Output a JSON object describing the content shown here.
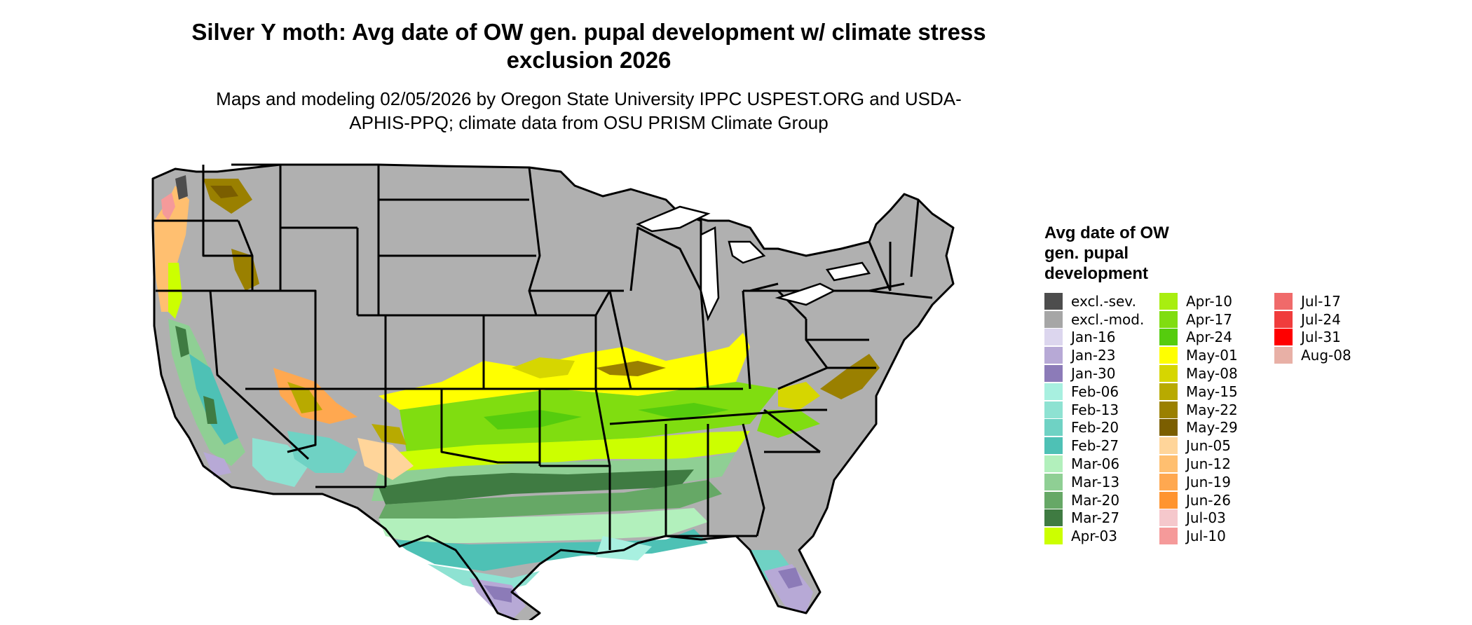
{
  "title": "Silver Y moth: Avg date of OW gen. pupal development w/ climate stress exclusion 2026",
  "subtitle": "Maps and modeling 02/05/2026 by Oregon State University IPPC USPEST.ORG and USDA-APHIS-PPQ; climate data from OSU PRISM Climate Group",
  "legend": {
    "title": "Avg date of OW gen. pupal development",
    "items": [
      {
        "label": "excl.-sev.",
        "color": "#4d4d4d"
      },
      {
        "label": "excl.-mod.",
        "color": "#a6a6a6"
      },
      {
        "label": "Jan-16",
        "color": "#dcd6ee"
      },
      {
        "label": "Jan-23",
        "color": "#b7a9d6"
      },
      {
        "label": "Jan-30",
        "color": "#8c7bb8"
      },
      {
        "label": "Feb-06",
        "color": "#a8f0e0"
      },
      {
        "label": "Feb-13",
        "color": "#8ee2d2"
      },
      {
        "label": "Feb-20",
        "color": "#6fd2c4"
      },
      {
        "label": "Feb-27",
        "color": "#4ec1b5"
      },
      {
        "label": "Mar-06",
        "color": "#b2f0bc"
      },
      {
        "label": "Mar-13",
        "color": "#8fcf94"
      },
      {
        "label": "Mar-20",
        "color": "#66a866"
      },
      {
        "label": "Mar-27",
        "color": "#3f7b42"
      },
      {
        "label": "Apr-03",
        "color": "#ccff00"
      },
      {
        "label": "Apr-10",
        "color": "#a8ee10"
      },
      {
        "label": "Apr-17",
        "color": "#80dd10"
      },
      {
        "label": "Apr-24",
        "color": "#55cc0e"
      },
      {
        "label": "May-01",
        "color": "#ffff00"
      },
      {
        "label": "May-08",
        "color": "#d6d600"
      },
      {
        "label": "May-15",
        "color": "#b8aa00"
      },
      {
        "label": "May-22",
        "color": "#9a8000"
      },
      {
        "label": "May-29",
        "color": "#7b5e00"
      },
      {
        "label": "Jun-05",
        "color": "#ffd59a"
      },
      {
        "label": "Jun-12",
        "color": "#ffbf70"
      },
      {
        "label": "Jun-19",
        "color": "#ffa850"
      },
      {
        "label": "Jun-26",
        "color": "#ff9430"
      },
      {
        "label": "Jul-03",
        "color": "#f5c8cc"
      },
      {
        "label": "Jul-10",
        "color": "#f59a9a"
      },
      {
        "label": "Jul-17",
        "color": "#f06a6a"
      },
      {
        "label": "Jul-24",
        "color": "#f03c3c"
      },
      {
        "label": "Jul-31",
        "color": "#ff0000"
      },
      {
        "label": "Aug-08",
        "color": "#e8b0a6"
      }
    ]
  },
  "map": {
    "excluded_color": "#b0b0b0",
    "border_color": "#000000"
  }
}
